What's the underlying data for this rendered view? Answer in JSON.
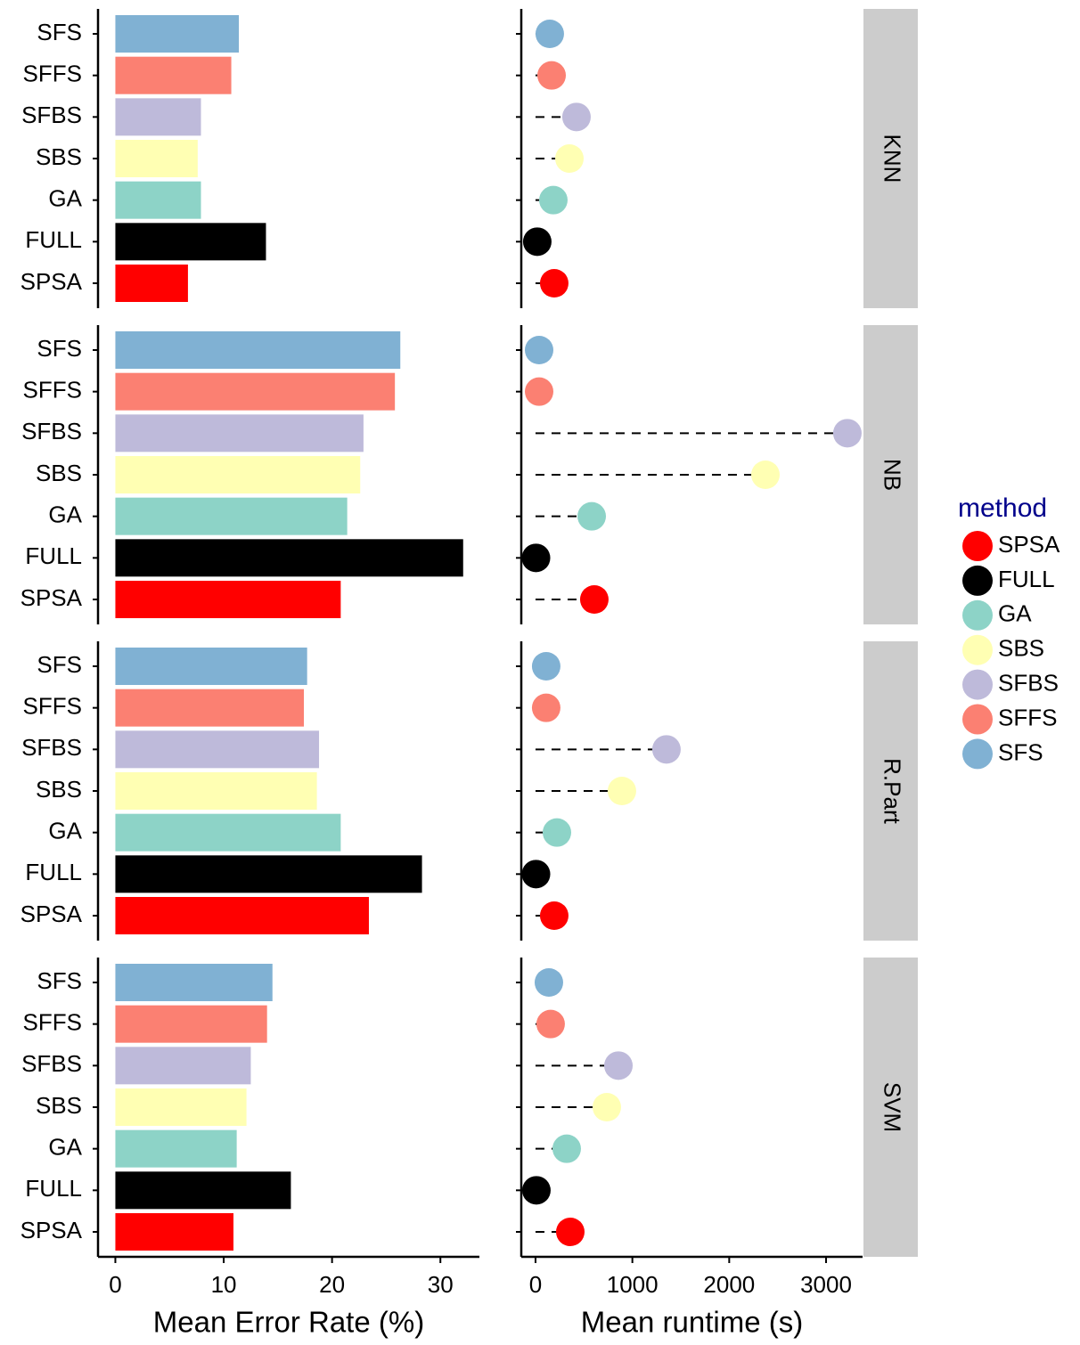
{
  "facets": [
    "KNN",
    "NB",
    "R.Part",
    "SVM"
  ],
  "legend": {
    "title": "method",
    "labels": [
      "SPSA",
      "FULL",
      "GA",
      "SBS",
      "SFBS",
      "SFFS",
      "SFS"
    ]
  },
  "chart_data": [
    {
      "type": "bar",
      "xlabel": "Mean Error Rate (%)",
      "categories": [
        "SFS",
        "SFFS",
        "SFBS",
        "SBS",
        "GA",
        "FULL",
        "SPSA"
      ],
      "colors": [
        "#80b1d3",
        "#fb8072",
        "#bebada",
        "#ffffb3",
        "#8dd3c7",
        "#000000",
        "#ff0000"
      ],
      "values": [
        [
          11.4,
          10.7,
          7.9,
          7.6,
          7.9,
          13.9,
          6.7
        ],
        [
          26.3,
          25.8,
          22.9,
          22.6,
          21.4,
          32.1,
          20.8
        ],
        [
          17.7,
          17.4,
          18.8,
          18.6,
          20.8,
          28.3,
          23.4
        ],
        [
          14.5,
          14.0,
          12.5,
          12.1,
          11.2,
          16.2,
          10.9
        ]
      ],
      "xlim": [
        -1.6,
        33.6
      ],
      "xticks": [
        0,
        10,
        20,
        30
      ]
    },
    {
      "type": "dot",
      "xlabel": "Mean runtime (s)",
      "values": [
        [
          147,
          166,
          423,
          350,
          184,
          18,
          193
        ],
        [
          37,
          37,
          3220,
          2374,
          580,
          5,
          607
        ],
        [
          110,
          110,
          1352,
          892,
          221,
          5,
          193
        ],
        [
          138,
          156,
          856,
          736,
          322,
          9,
          359
        ]
      ],
      "xlim": [
        -147,
        3377
      ],
      "xticks": [
        0,
        1000,
        2000,
        3000
      ]
    }
  ]
}
